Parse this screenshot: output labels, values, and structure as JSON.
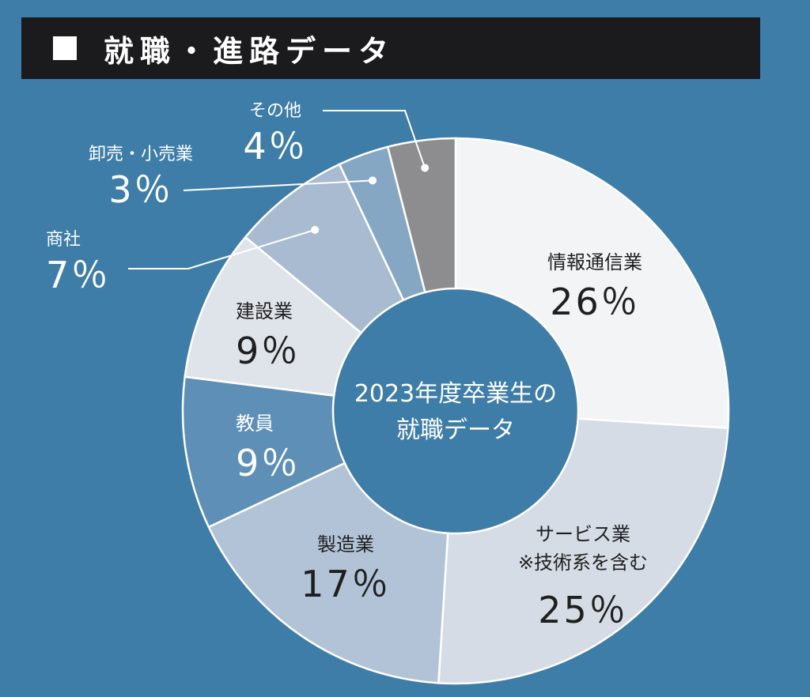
{
  "header": {
    "title": "就職・進路データ"
  },
  "chart_data": {
    "type": "pie",
    "center_label": [
      "2023年度卒業生の",
      "就職データ"
    ],
    "slices": [
      {
        "name": "情報通信業",
        "value": 26,
        "label": "26％",
        "color": "#f3f4f6"
      },
      {
        "name": "サービス業",
        "note": "※技術系を含む",
        "value": 25,
        "label": "25％",
        "color": "#d5dce6"
      },
      {
        "name": "製造業",
        "value": 17,
        "label": "17％",
        "color": "#b2c3d7"
      },
      {
        "name": "教員",
        "value": 9,
        "label": "9％",
        "color": "#5e8fb6"
      },
      {
        "name": "建設業",
        "value": 9,
        "label": "9％",
        "color": "#dfe3ea"
      },
      {
        "name": "商社",
        "value": 7,
        "label": "7％",
        "color": "#a8bbd0"
      },
      {
        "name": "卸売・小売業",
        "value": 3,
        "label": "3％",
        "color": "#86a7c4"
      },
      {
        "name": "その他",
        "value": 4,
        "label": "4％",
        "color": "#8d8c8e"
      }
    ]
  }
}
